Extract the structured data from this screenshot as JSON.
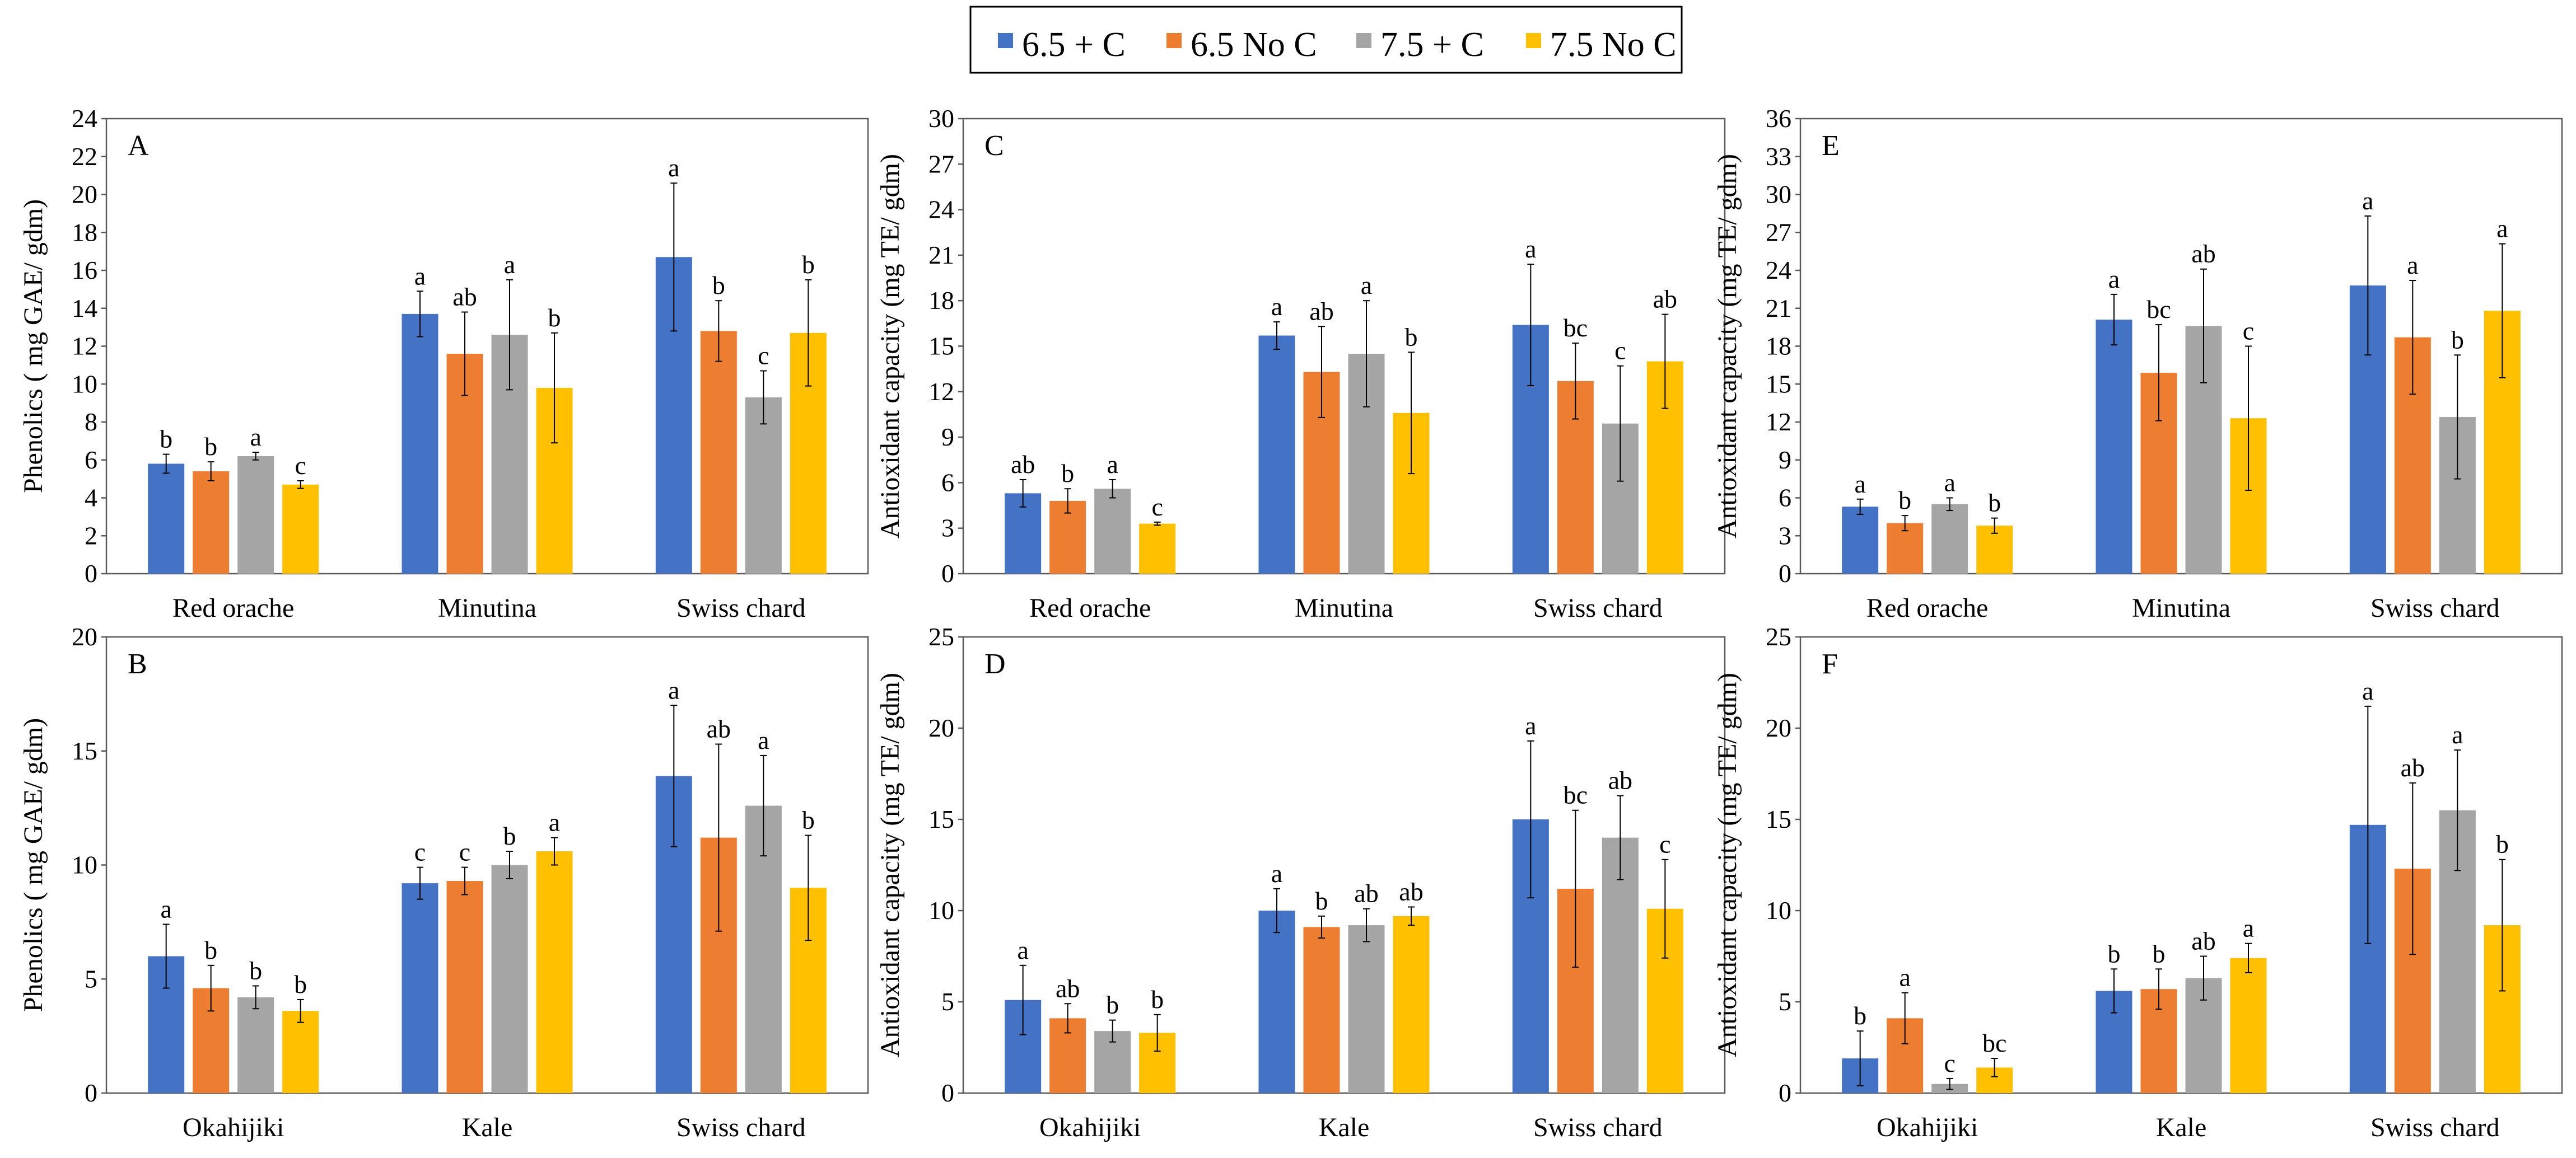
{
  "legend": [
    {
      "label": "6.5 + C",
      "color": "#4472C4"
    },
    {
      "label": "6.5 No C",
      "color": "#ED7D31"
    },
    {
      "label": "7.5 + C",
      "color": "#A5A5A5"
    },
    {
      "label": "7.5 No C",
      "color": "#FFC000"
    }
  ],
  "chart_data": [
    {
      "panel": "A",
      "type": "bar",
      "ylabel": "Phenolics ( mg GAE/ gdm)",
      "ylim": [
        0,
        24
      ],
      "ytick_step": 2,
      "categories": [
        "Red orache",
        "Minutina",
        "Swiss chard"
      ],
      "series": [
        {
          "name": "6.5 + C",
          "values": [
            5.8,
            13.7,
            16.7
          ],
          "errors": [
            0.5,
            1.2,
            3.9
          ],
          "letters": [
            "b",
            "a",
            "a"
          ]
        },
        {
          "name": "6.5 No C",
          "values": [
            5.4,
            11.6,
            12.8
          ],
          "errors": [
            0.5,
            2.2,
            1.6
          ],
          "letters": [
            "b",
            "ab",
            "b"
          ]
        },
        {
          "name": "7.5 + C",
          "values": [
            6.2,
            12.6,
            9.3
          ],
          "errors": [
            0.2,
            2.9,
            1.4
          ],
          "letters": [
            "a",
            "a",
            "c"
          ]
        },
        {
          "name": "7.5 No C",
          "values": [
            4.7,
            9.8,
            12.7
          ],
          "errors": [
            0.2,
            2.9,
            2.8
          ],
          "letters": [
            "c",
            "b",
            "b"
          ]
        }
      ]
    },
    {
      "panel": "C",
      "type": "bar",
      "ylabel": "Antioxidant capacity (mg TE/ gdm)",
      "ylim": [
        0,
        30
      ],
      "ytick_step": 3,
      "categories": [
        "Red orache",
        "Minutina",
        "Swiss chard"
      ],
      "series": [
        {
          "name": "6.5 + C",
          "values": [
            5.3,
            15.7,
            16.4
          ],
          "errors": [
            0.9,
            0.9,
            4.0
          ],
          "letters": [
            "ab",
            "a",
            "a"
          ]
        },
        {
          "name": "6.5 No C",
          "values": [
            4.8,
            13.3,
            12.7
          ],
          "errors": [
            0.8,
            3.0,
            2.5
          ],
          "letters": [
            "b",
            "ab",
            "bc"
          ]
        },
        {
          "name": "7.5 + C",
          "values": [
            5.6,
            14.5,
            9.9
          ],
          "errors": [
            0.6,
            3.5,
            3.8
          ],
          "letters": [
            "a",
            "a",
            "c"
          ]
        },
        {
          "name": "7.5 No C",
          "values": [
            3.3,
            10.6,
            14.0
          ],
          "errors": [
            0.1,
            4.0,
            3.1
          ],
          "letters": [
            "c",
            "b",
            "ab"
          ]
        }
      ]
    },
    {
      "panel": "E",
      "type": "bar",
      "ylabel": "Antioxidant capacity (mg TE/ gdm)",
      "ylim": [
        0,
        36
      ],
      "ytick_step": 3,
      "categories": [
        "Red orache",
        "Minutina",
        "Swiss chard"
      ],
      "series": [
        {
          "name": "6.5 + C",
          "values": [
            5.3,
            20.1,
            22.8
          ],
          "errors": [
            0.6,
            2.0,
            5.5
          ],
          "letters": [
            "a",
            "a",
            "a"
          ]
        },
        {
          "name": "6.5 No C",
          "values": [
            4.0,
            15.9,
            18.7
          ],
          "errors": [
            0.6,
            3.8,
            4.5
          ],
          "letters": [
            "b",
            "bc",
            "a"
          ]
        },
        {
          "name": "7.5 + C",
          "values": [
            5.5,
            19.6,
            12.4
          ],
          "errors": [
            0.5,
            4.5,
            4.9
          ],
          "letters": [
            "a",
            "ab",
            "b"
          ]
        },
        {
          "name": "7.5 No C",
          "values": [
            3.8,
            12.3,
            20.8
          ],
          "errors": [
            0.6,
            5.7,
            5.3
          ],
          "letters": [
            "b",
            "c",
            "a"
          ]
        }
      ]
    },
    {
      "panel": "B",
      "type": "bar",
      "ylabel": "Phenolics ( mg GAE/ gdm)",
      "ylim": [
        0,
        20
      ],
      "ytick_step": 5,
      "categories": [
        "Okahijiki",
        "Kale",
        "Swiss chard"
      ],
      "series": [
        {
          "name": "6.5 + C",
          "values": [
            6.0,
            9.2,
            13.9
          ],
          "errors": [
            1.4,
            0.7,
            3.1
          ],
          "letters": [
            "a",
            "c",
            "a"
          ]
        },
        {
          "name": "6.5 No C",
          "values": [
            4.6,
            9.3,
            11.2
          ],
          "errors": [
            1.0,
            0.6,
            4.1
          ],
          "letters": [
            "b",
            "c",
            "ab"
          ]
        },
        {
          "name": "7.5 + C",
          "values": [
            4.2,
            10.0,
            12.6
          ],
          "errors": [
            0.5,
            0.6,
            2.2
          ],
          "letters": [
            "b",
            "b",
            "a"
          ]
        },
        {
          "name": "7.5 No C",
          "values": [
            3.6,
            10.6,
            9.0
          ],
          "errors": [
            0.5,
            0.6,
            2.3
          ],
          "letters": [
            "b",
            "a",
            "b"
          ]
        }
      ]
    },
    {
      "panel": "D",
      "type": "bar",
      "ylabel": "Antioxidant capacity (mg TE/ gdm)",
      "ylim": [
        0,
        25
      ],
      "ytick_step": 5,
      "categories": [
        "Okahijiki",
        "Kale",
        "Swiss chard"
      ],
      "series": [
        {
          "name": "6.5 + C",
          "values": [
            5.1,
            10.0,
            15.0
          ],
          "errors": [
            1.9,
            1.2,
            4.3
          ],
          "letters": [
            "a",
            "a",
            "a"
          ]
        },
        {
          "name": "6.5 No C",
          "values": [
            4.1,
            9.1,
            11.2
          ],
          "errors": [
            0.8,
            0.6,
            4.3
          ],
          "letters": [
            "ab",
            "b",
            "bc"
          ]
        },
        {
          "name": "7.5 + C",
          "values": [
            3.4,
            9.2,
            14.0
          ],
          "errors": [
            0.6,
            0.9,
            2.3
          ],
          "letters": [
            "b",
            "ab",
            "ab"
          ]
        },
        {
          "name": "7.5 No C",
          "values": [
            3.3,
            9.7,
            10.1
          ],
          "errors": [
            1.0,
            0.5,
            2.7
          ],
          "letters": [
            "b",
            "ab",
            "c"
          ]
        }
      ]
    },
    {
      "panel": "F",
      "type": "bar",
      "ylabel": "Antioxidant capacity (mg TE/ gdm)",
      "ylim": [
        0,
        25
      ],
      "ytick_step": 5,
      "categories": [
        "Okahijiki",
        "Kale",
        "Swiss chard"
      ],
      "series": [
        {
          "name": "6.5 + C",
          "values": [
            1.9,
            5.6,
            14.7
          ],
          "errors": [
            1.5,
            1.2,
            6.5
          ],
          "letters": [
            "b",
            "b",
            "a"
          ]
        },
        {
          "name": "6.5 No C",
          "values": [
            4.1,
            5.7,
            12.3
          ],
          "errors": [
            1.4,
            1.1,
            4.7
          ],
          "letters": [
            "a",
            "b",
            "ab"
          ]
        },
        {
          "name": "7.5 + C",
          "values": [
            0.5,
            6.3,
            15.5
          ],
          "errors": [
            0.3,
            1.2,
            3.3
          ],
          "letters": [
            "c",
            "ab",
            "a"
          ]
        },
        {
          "name": "7.5 No C",
          "values": [
            1.4,
            7.4,
            9.2
          ],
          "errors": [
            0.5,
            0.8,
            3.6
          ],
          "letters": [
            "bc",
            "a",
            "b"
          ]
        }
      ]
    }
  ]
}
